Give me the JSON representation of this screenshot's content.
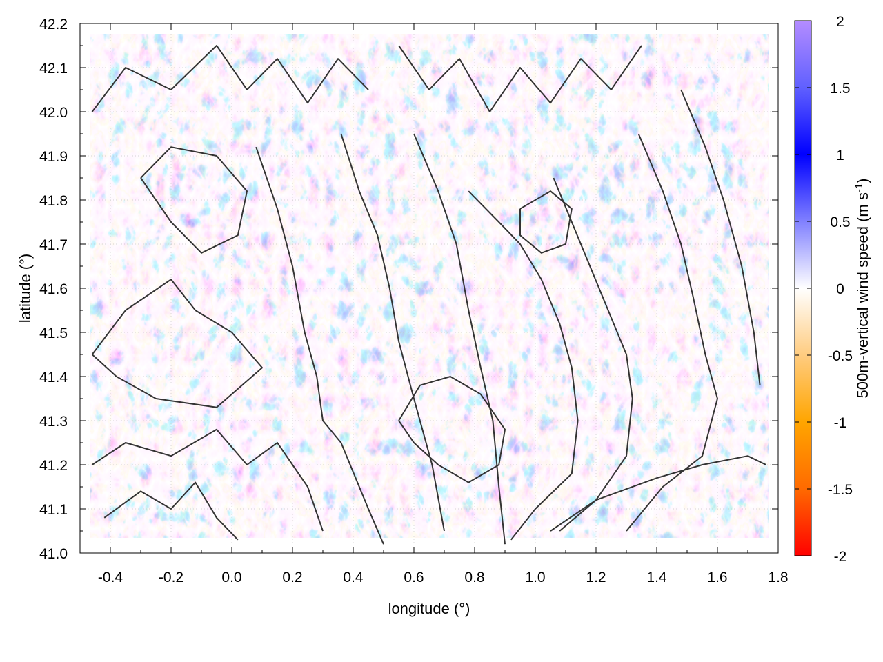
{
  "chart_data": {
    "type": "heatmap",
    "title": "",
    "xlabel": "longitude (°)",
    "ylabel": "latitude (°)",
    "xlim": [
      -0.5,
      1.8
    ],
    "ylim": [
      41.0,
      42.2
    ],
    "x_ticks": [
      "-0.4",
      "-0.2",
      "0.0",
      "0.2",
      "0.4",
      "0.6",
      "0.8",
      "1.0",
      "1.2",
      "1.4",
      "1.6",
      "1.8"
    ],
    "x_tick_values": [
      -0.4,
      -0.2,
      0.0,
      0.2,
      0.4,
      0.6,
      0.8,
      1.0,
      1.2,
      1.4,
      1.6,
      1.8
    ],
    "y_ticks": [
      "41.0",
      "41.1",
      "41.2",
      "41.3",
      "41.4",
      "41.5",
      "41.6",
      "41.7",
      "41.8",
      "41.9",
      "42.0",
      "42.1",
      "42.2"
    ],
    "y_tick_values": [
      41.0,
      41.1,
      41.2,
      41.3,
      41.4,
      41.5,
      41.6,
      41.7,
      41.8,
      41.9,
      42.0,
      42.1,
      42.2
    ],
    "grid": true,
    "colorbar": {
      "label_main": "500m-vertical wind speed (m s",
      "label_sup": "-1",
      "label_close": ")",
      "range": [
        -2,
        2
      ],
      "ticks": [
        "2",
        "1.5",
        "1",
        "0.5",
        "0",
        "-0.5",
        "-1",
        "-1.5",
        "-2"
      ],
      "tick_values": [
        2,
        1.5,
        1,
        0.5,
        0,
        -0.5,
        -1,
        -1.5,
        -2
      ],
      "colors": {
        "2": "#b48cff",
        "1.5": "#6060ff",
        "1": "#0000ff",
        "0.5": "#8080ff",
        "0": "#ffffff",
        "-0.5": "#ffcc80",
        "-1": "#ffa500",
        "-1.5": "#ff6a00",
        "-2": "#ff0000"
      }
    },
    "contours": {
      "color": "#333333",
      "lines": [
        [
          [
            -0.46,
            41.45
          ],
          [
            -0.35,
            41.55
          ],
          [
            -0.2,
            41.62
          ],
          [
            -0.12,
            41.55
          ],
          [
            0.0,
            41.5
          ],
          [
            0.1,
            41.42
          ],
          [
            -0.05,
            41.33
          ],
          [
            -0.25,
            41.35
          ],
          [
            -0.38,
            41.4
          ],
          [
            -0.46,
            41.45
          ]
        ],
        [
          [
            0.08,
            41.92
          ],
          [
            0.15,
            41.78
          ],
          [
            0.2,
            41.65
          ],
          [
            0.24,
            41.5
          ],
          [
            0.28,
            41.4
          ],
          [
            0.3,
            41.3
          ],
          [
            0.36,
            41.25
          ],
          [
            0.45,
            41.1
          ],
          [
            0.5,
            41.02
          ]
        ],
        [
          [
            0.36,
            41.95
          ],
          [
            0.42,
            41.82
          ],
          [
            0.48,
            41.72
          ],
          [
            0.52,
            41.6
          ],
          [
            0.55,
            41.48
          ],
          [
            0.6,
            41.35
          ],
          [
            0.66,
            41.2
          ],
          [
            0.7,
            41.05
          ]
        ],
        [
          [
            0.6,
            41.95
          ],
          [
            0.68,
            41.82
          ],
          [
            0.74,
            41.7
          ],
          [
            0.78,
            41.55
          ],
          [
            0.82,
            41.42
          ],
          [
            0.86,
            41.3
          ],
          [
            0.88,
            41.15
          ],
          [
            0.9,
            41.02
          ]
        ],
        [
          [
            0.78,
            41.82
          ],
          [
            0.88,
            41.75
          ],
          [
            0.95,
            41.7
          ],
          [
            1.02,
            41.62
          ],
          [
            1.08,
            41.52
          ],
          [
            1.12,
            41.42
          ],
          [
            1.14,
            41.3
          ],
          [
            1.12,
            41.18
          ],
          [
            1.0,
            41.1
          ],
          [
            0.92,
            41.03
          ]
        ],
        [
          [
            1.06,
            41.85
          ],
          [
            1.12,
            41.75
          ],
          [
            1.18,
            41.65
          ],
          [
            1.24,
            41.55
          ],
          [
            1.3,
            41.45
          ],
          [
            1.32,
            41.35
          ],
          [
            1.3,
            41.22
          ],
          [
            1.2,
            41.12
          ],
          [
            1.08,
            41.05
          ]
        ],
        [
          [
            1.34,
            41.95
          ],
          [
            1.42,
            41.82
          ],
          [
            1.48,
            41.7
          ],
          [
            1.52,
            41.58
          ],
          [
            1.56,
            41.45
          ],
          [
            1.6,
            41.35
          ],
          [
            1.55,
            41.22
          ],
          [
            1.42,
            41.15
          ],
          [
            1.3,
            41.05
          ]
        ],
        [
          [
            1.48,
            42.05
          ],
          [
            1.56,
            41.92
          ],
          [
            1.62,
            41.8
          ],
          [
            1.68,
            41.65
          ],
          [
            1.72,
            41.5
          ],
          [
            1.74,
            41.38
          ]
        ],
        [
          [
            1.05,
            41.05
          ],
          [
            1.2,
            41.12
          ],
          [
            1.4,
            41.17
          ],
          [
            1.55,
            41.2
          ],
          [
            1.7,
            41.22
          ],
          [
            1.76,
            41.2
          ]
        ],
        [
          [
            -0.46,
            42.0
          ],
          [
            -0.35,
            42.1
          ],
          [
            -0.2,
            42.05
          ],
          [
            -0.05,
            42.15
          ],
          [
            0.05,
            42.05
          ],
          [
            0.15,
            42.12
          ],
          [
            0.25,
            42.02
          ],
          [
            0.35,
            42.12
          ],
          [
            0.45,
            42.05
          ]
        ],
        [
          [
            0.55,
            42.15
          ],
          [
            0.65,
            42.05
          ],
          [
            0.75,
            42.12
          ],
          [
            0.85,
            42.0
          ],
          [
            0.95,
            42.1
          ],
          [
            1.05,
            42.02
          ],
          [
            1.15,
            42.12
          ],
          [
            1.25,
            42.05
          ],
          [
            1.35,
            42.15
          ]
        ],
        [
          [
            -0.46,
            41.2
          ],
          [
            -0.35,
            41.25
          ],
          [
            -0.2,
            41.22
          ],
          [
            -0.05,
            41.28
          ],
          [
            0.05,
            41.2
          ],
          [
            0.15,
            41.25
          ],
          [
            0.25,
            41.15
          ],
          [
            0.3,
            41.05
          ]
        ],
        [
          [
            -0.42,
            41.08
          ],
          [
            -0.3,
            41.14
          ],
          [
            -0.2,
            41.1
          ],
          [
            -0.12,
            41.16
          ],
          [
            -0.05,
            41.08
          ],
          [
            0.02,
            41.03
          ]
        ],
        [
          [
            0.55,
            41.3
          ],
          [
            0.62,
            41.38
          ],
          [
            0.72,
            41.4
          ],
          [
            0.82,
            41.36
          ],
          [
            0.9,
            41.28
          ],
          [
            0.88,
            41.2
          ],
          [
            0.78,
            41.16
          ],
          [
            0.68,
            41.2
          ],
          [
            0.6,
            41.25
          ],
          [
            0.55,
            41.3
          ]
        ],
        [
          [
            -0.3,
            41.85
          ],
          [
            -0.2,
            41.75
          ],
          [
            -0.1,
            41.68
          ],
          [
            0.02,
            41.72
          ],
          [
            0.05,
            41.82
          ],
          [
            -0.05,
            41.9
          ],
          [
            -0.2,
            41.92
          ],
          [
            -0.3,
            41.85
          ]
        ],
        [
          [
            0.95,
            41.78
          ],
          [
            1.05,
            41.82
          ],
          [
            1.12,
            41.78
          ],
          [
            1.1,
            41.7
          ],
          [
            1.02,
            41.68
          ],
          [
            0.95,
            41.72
          ],
          [
            0.95,
            41.78
          ]
        ]
      ]
    }
  }
}
